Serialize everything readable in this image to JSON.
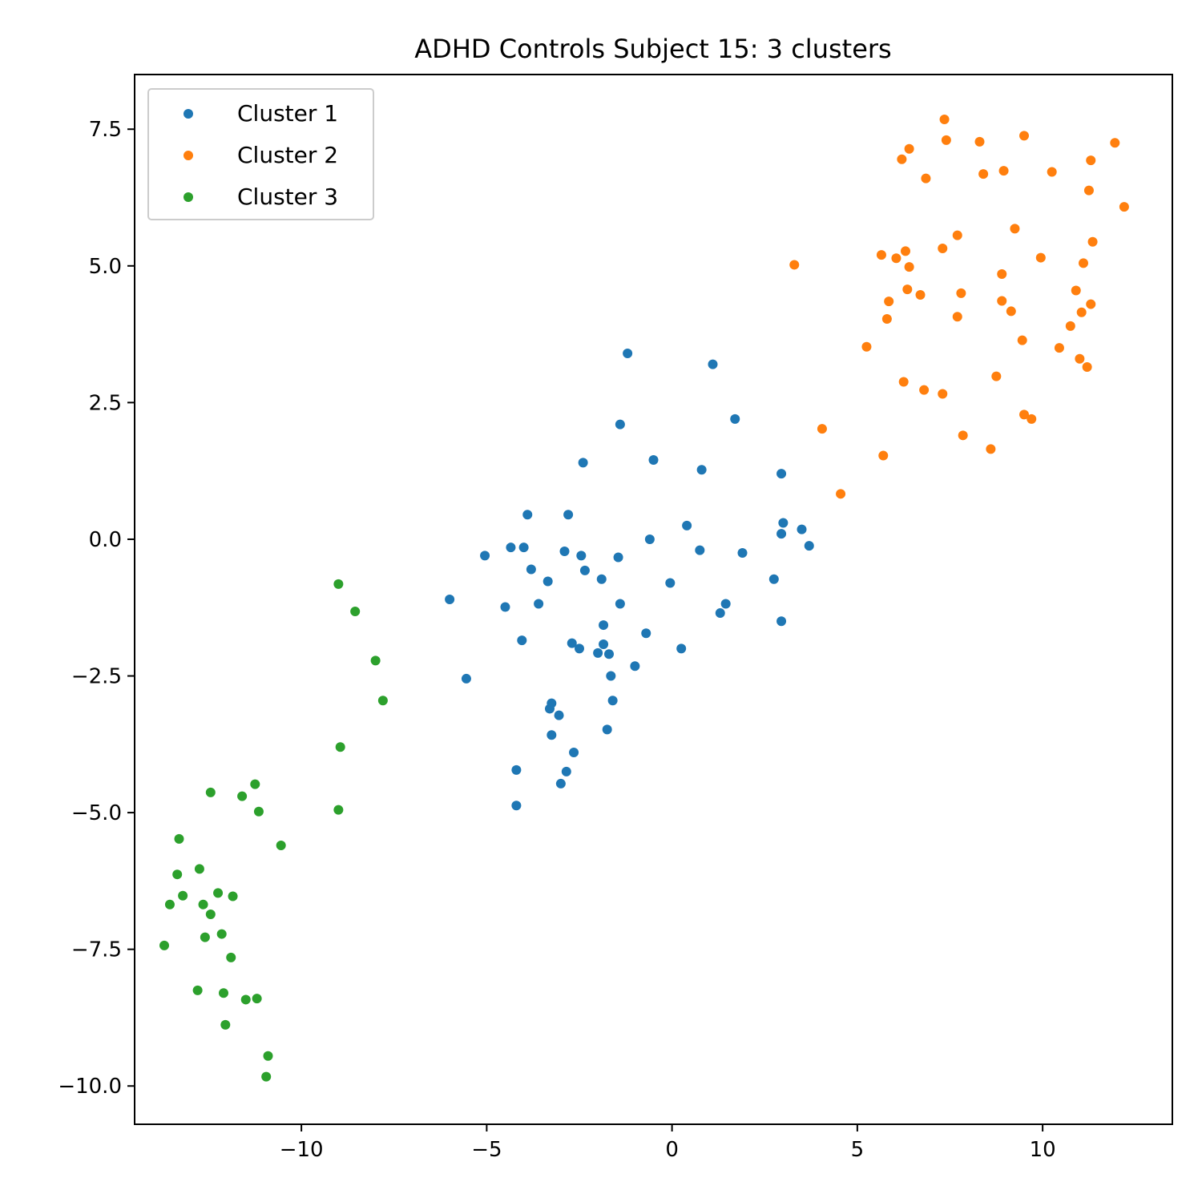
{
  "chart_data": {
    "type": "scatter",
    "title": "ADHD Controls Subject 15: 3 clusters",
    "xlabel": "",
    "ylabel": "",
    "xlim": [
      -14.5,
      13.5
    ],
    "ylim": [
      -10.7,
      8.5
    ],
    "xticks": [
      -10,
      -5,
      0,
      5,
      10
    ],
    "xtick_labels": [
      "−10",
      "−5",
      "0",
      "5",
      "10"
    ],
    "yticks": [
      -10,
      -7.5,
      -5,
      -2.5,
      0,
      2.5,
      5,
      7.5
    ],
    "ytick_labels": [
      "−10.0",
      "−7.5",
      "−5.0",
      "−2.5",
      "0.0",
      "2.5",
      "5.0",
      "7.5"
    ],
    "grid": false,
    "legend_position": "upper-left",
    "series": [
      {
        "name": "Cluster 1",
        "color": "#1f77b4",
        "points": [
          [
            -1.2,
            3.4
          ],
          [
            1.1,
            3.2
          ],
          [
            1.7,
            2.2
          ],
          [
            -1.4,
            2.1
          ],
          [
            -2.4,
            1.4
          ],
          [
            -0.5,
            1.45
          ],
          [
            0.8,
            1.27
          ],
          [
            2.95,
            1.2
          ],
          [
            -3.9,
            0.45
          ],
          [
            -2.8,
            0.45
          ],
          [
            0.4,
            0.25
          ],
          [
            3.0,
            0.3
          ],
          [
            2.95,
            0.1
          ],
          [
            3.5,
            0.18
          ],
          [
            3.7,
            -0.12
          ],
          [
            -0.6,
            0.0
          ],
          [
            -4.35,
            -0.15
          ],
          [
            -4.0,
            -0.15
          ],
          [
            -2.9,
            -0.22
          ],
          [
            -2.45,
            -0.3
          ],
          [
            -5.05,
            -0.3
          ],
          [
            -1.45,
            -0.33
          ],
          [
            0.75,
            -0.2
          ],
          [
            1.9,
            -0.25
          ],
          [
            -3.8,
            -0.55
          ],
          [
            -2.35,
            -0.57
          ],
          [
            -3.35,
            -0.77
          ],
          [
            -1.9,
            -0.73
          ],
          [
            2.75,
            -0.73
          ],
          [
            -0.05,
            -0.8
          ],
          [
            -6.0,
            -1.1
          ],
          [
            -4.5,
            -1.24
          ],
          [
            -3.6,
            -1.18
          ],
          [
            -1.4,
            -1.18
          ],
          [
            1.45,
            -1.18
          ],
          [
            1.3,
            -1.35
          ],
          [
            2.95,
            -1.5
          ],
          [
            -1.85,
            -1.57
          ],
          [
            -0.7,
            -1.72
          ],
          [
            -4.05,
            -1.85
          ],
          [
            -2.7,
            -1.9
          ],
          [
            -1.85,
            -1.92
          ],
          [
            -2.5,
            -2.0
          ],
          [
            0.25,
            -2.0
          ],
          [
            -2.0,
            -2.08
          ],
          [
            -1.7,
            -2.1
          ],
          [
            -1.0,
            -2.32
          ],
          [
            -5.55,
            -2.55
          ],
          [
            -1.65,
            -2.5
          ],
          [
            -1.6,
            -2.95
          ],
          [
            -3.25,
            -3.0
          ],
          [
            -3.3,
            -3.1
          ],
          [
            -3.05,
            -3.22
          ],
          [
            -1.75,
            -3.48
          ],
          [
            -3.25,
            -3.58
          ],
          [
            -2.65,
            -3.9
          ],
          [
            -4.2,
            -4.22
          ],
          [
            -2.85,
            -4.25
          ],
          [
            -3.0,
            -4.47
          ],
          [
            -4.2,
            -4.87
          ]
        ]
      },
      {
        "name": "Cluster 2",
        "color": "#ff7f0e",
        "points": [
          [
            7.35,
            7.68
          ],
          [
            7.4,
            7.3
          ],
          [
            8.3,
            7.27
          ],
          [
            9.5,
            7.38
          ],
          [
            11.95,
            7.25
          ],
          [
            6.4,
            7.14
          ],
          [
            6.2,
            6.95
          ],
          [
            11.3,
            6.93
          ],
          [
            6.85,
            6.6
          ],
          [
            8.4,
            6.68
          ],
          [
            8.95,
            6.74
          ],
          [
            10.25,
            6.72
          ],
          [
            11.25,
            6.38
          ],
          [
            12.2,
            6.08
          ],
          [
            9.25,
            5.68
          ],
          [
            7.7,
            5.56
          ],
          [
            11.35,
            5.44
          ],
          [
            7.3,
            5.32
          ],
          [
            6.3,
            5.27
          ],
          [
            5.65,
            5.2
          ],
          [
            6.05,
            5.14
          ],
          [
            9.95,
            5.15
          ],
          [
            11.1,
            5.05
          ],
          [
            3.3,
            5.02
          ],
          [
            6.4,
            4.98
          ],
          [
            8.9,
            4.85
          ],
          [
            6.35,
            4.57
          ],
          [
            10.9,
            4.55
          ],
          [
            7.8,
            4.5
          ],
          [
            6.7,
            4.47
          ],
          [
            5.85,
            4.35
          ],
          [
            8.9,
            4.36
          ],
          [
            11.3,
            4.3
          ],
          [
            9.15,
            4.17
          ],
          [
            11.05,
            4.15
          ],
          [
            7.7,
            4.07
          ],
          [
            5.8,
            4.03
          ],
          [
            10.75,
            3.9
          ],
          [
            9.45,
            3.64
          ],
          [
            5.25,
            3.52
          ],
          [
            10.45,
            3.5
          ],
          [
            11.0,
            3.3
          ],
          [
            11.2,
            3.15
          ],
          [
            8.75,
            2.98
          ],
          [
            6.25,
            2.88
          ],
          [
            6.8,
            2.73
          ],
          [
            7.3,
            2.66
          ],
          [
            9.5,
            2.28
          ],
          [
            9.7,
            2.2
          ],
          [
            4.05,
            2.02
          ],
          [
            7.85,
            1.9
          ],
          [
            8.6,
            1.65
          ],
          [
            5.7,
            1.53
          ],
          [
            4.55,
            0.83
          ]
        ]
      },
      {
        "name": "Cluster 3",
        "color": "#2ca02c",
        "points": [
          [
            -9.0,
            -0.82
          ],
          [
            -8.55,
            -1.32
          ],
          [
            -8.0,
            -2.22
          ],
          [
            -7.8,
            -2.95
          ],
          [
            -8.95,
            -3.8
          ],
          [
            -9.0,
            -4.95
          ],
          [
            -11.25,
            -4.48
          ],
          [
            -11.6,
            -4.7
          ],
          [
            -12.45,
            -4.63
          ],
          [
            -11.15,
            -4.98
          ],
          [
            -10.55,
            -5.6
          ],
          [
            -13.3,
            -5.48
          ],
          [
            -12.75,
            -6.03
          ],
          [
            -13.35,
            -6.13
          ],
          [
            -12.25,
            -6.47
          ],
          [
            -11.85,
            -6.53
          ],
          [
            -13.2,
            -6.52
          ],
          [
            -13.55,
            -6.68
          ],
          [
            -12.65,
            -6.68
          ],
          [
            -12.45,
            -6.86
          ],
          [
            -12.15,
            -7.22
          ],
          [
            -12.6,
            -7.28
          ],
          [
            -13.7,
            -7.43
          ],
          [
            -11.9,
            -7.65
          ],
          [
            -12.8,
            -8.25
          ],
          [
            -12.1,
            -8.3
          ],
          [
            -11.5,
            -8.42
          ],
          [
            -11.2,
            -8.4
          ],
          [
            -12.05,
            -8.88
          ],
          [
            -10.9,
            -9.45
          ],
          [
            -10.95,
            -9.83
          ]
        ]
      }
    ]
  }
}
